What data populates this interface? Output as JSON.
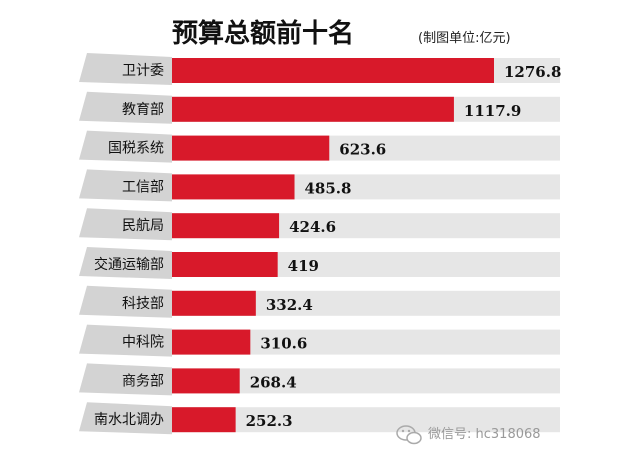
{
  "chart_data": {
    "type": "bar",
    "orientation": "horizontal",
    "title": "预算总额前十名",
    "unit_note": "(制图单位:亿元)",
    "categories": [
      "卫计委",
      "教育部",
      "国税系统",
      "工信部",
      "民航局",
      "交通运输部",
      "科技部",
      "中科院",
      "商务部",
      "南水北调办"
    ],
    "values": [
      1276.8,
      1117.9,
      623.6,
      485.8,
      424.6,
      419,
      332.4,
      310.6,
      268.4,
      252.3
    ],
    "value_labels": [
      "1276.8",
      "1117.9",
      "623.6",
      "485.8",
      "424.6",
      "419",
      "332.4",
      "310.6",
      "268.4",
      "252.3"
    ],
    "xlim": [
      0,
      1420
    ],
    "colors": {
      "bar": "#d8192a",
      "track": "#e6e6e6",
      "label_tab": "#d3d3d3"
    }
  },
  "watermark": {
    "text": "微信号: hc318068",
    "icon": "wechat-icon"
  }
}
